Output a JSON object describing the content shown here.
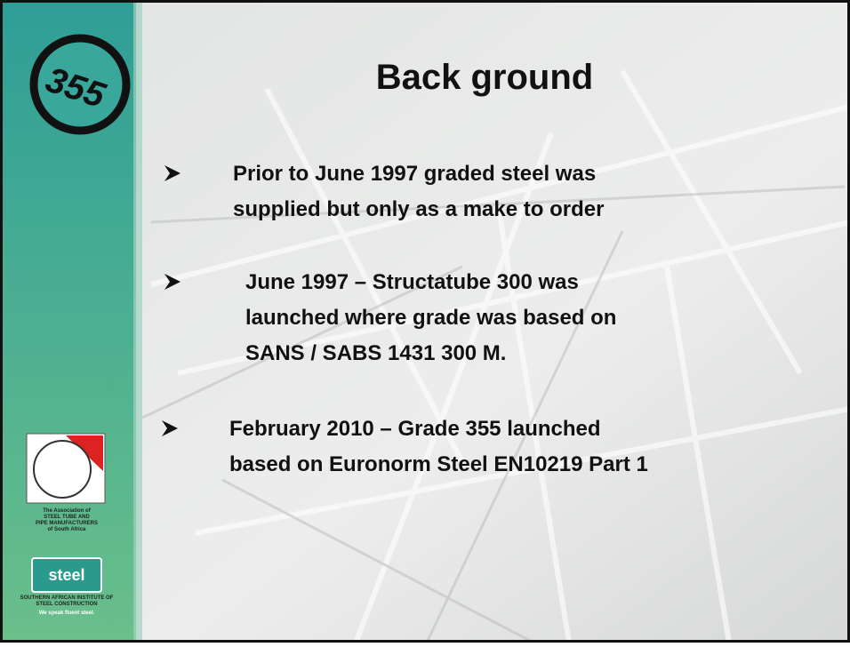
{
  "logo": {
    "number": "355"
  },
  "association": {
    "lines": [
      "The Association of",
      "STEEL TUBE AND",
      "PIPE MANUFACTURERS",
      "of South Africa"
    ]
  },
  "institute": {
    "mark": "steel",
    "lines": [
      "SOUTHERN AFRICAN INSTITUTE OF",
      "STEEL CONSTRUCTION"
    ],
    "slogan": "We speak fluent steel."
  },
  "slide": {
    "title": "Back ground",
    "bullets": [
      {
        "lines": [
          "Prior to June 1997 graded steel was",
          "supplied but only as a make to order"
        ]
      },
      {
        "lines": [
          "June 1997 – Structatube 300 was",
          "launched where grade was based on",
          "SANS / SABS 1431 300 M."
        ]
      },
      {
        "lines": [
          "February 2010 – Grade 355 launched",
          "based on Euronorm Steel EN10219 Part 1"
        ]
      }
    ]
  }
}
